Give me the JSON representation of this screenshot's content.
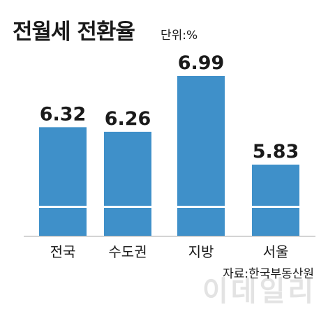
{
  "title": "전월세 전환율",
  "unit_label": "단위:%",
  "source": "자료:한국부동산원",
  "watermark": "이데일리",
  "colors": {
    "bar": "#3f90c9",
    "break": "#ffffff",
    "baseline": "#9a9a9a",
    "text": "#1a1a1a"
  },
  "chart_data": {
    "type": "bar",
    "categories": [
      "전국",
      "수도권",
      "지방",
      "서울"
    ],
    "values": [
      6.32,
      6.26,
      6.99,
      5.83
    ],
    "value_labels": [
      "6.32",
      "6.26",
      "6.99",
      "5.83"
    ],
    "axis_break": true,
    "grid": false,
    "legend": "none"
  }
}
